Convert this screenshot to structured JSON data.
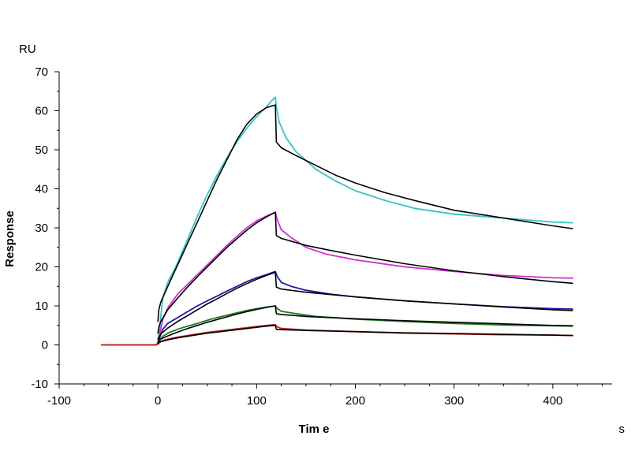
{
  "chart_data": {
    "type": "line",
    "title": "",
    "xlabel": "Tim e",
    "ylabel": "Response",
    "x_unit": "s",
    "y_unit": "RU",
    "xlim": [
      -100,
      460
    ],
    "ylim": [
      -10,
      70
    ],
    "x_ticks": [
      -100,
      0,
      100,
      200,
      300,
      400
    ],
    "y_ticks": [
      -10,
      0,
      10,
      20,
      30,
      40,
      50,
      60,
      70
    ],
    "grid": false,
    "legend": "none",
    "series": [
      {
        "color": "#33c4c8",
        "kind": "data",
        "points": [
          [
            -57,
            0
          ],
          [
            -20,
            0
          ],
          [
            -2,
            0
          ],
          [
            0,
            0.5
          ],
          [
            2,
            5
          ],
          [
            5,
            12
          ],
          [
            10,
            16
          ],
          [
            20,
            21
          ],
          [
            30,
            27
          ],
          [
            40,
            33
          ],
          [
            50,
            38.5
          ],
          [
            60,
            43.5
          ],
          [
            70,
            48
          ],
          [
            80,
            52
          ],
          [
            90,
            55.5
          ],
          [
            100,
            58.5
          ],
          [
            110,
            61
          ],
          [
            115,
            62.5
          ],
          [
            119,
            63.5
          ],
          [
            120,
            61
          ],
          [
            123,
            57
          ],
          [
            130,
            53
          ],
          [
            140,
            49.5
          ],
          [
            160,
            45
          ],
          [
            180,
            42
          ],
          [
            200,
            39.5
          ],
          [
            230,
            37
          ],
          [
            260,
            35
          ],
          [
            300,
            33.5
          ],
          [
            350,
            32.5
          ],
          [
            400,
            31.5
          ],
          [
            420,
            31.3
          ]
        ]
      },
      {
        "color": "#d42bd4",
        "kind": "data",
        "points": [
          [
            -57,
            0
          ],
          [
            -2,
            0
          ],
          [
            0,
            0.5
          ],
          [
            2,
            3
          ],
          [
            5,
            6.5
          ],
          [
            10,
            9.5
          ],
          [
            20,
            13
          ],
          [
            30,
            15.5
          ],
          [
            40,
            18
          ],
          [
            50,
            20.5
          ],
          [
            60,
            23
          ],
          [
            70,
            25.5
          ],
          [
            80,
            27.8
          ],
          [
            90,
            30
          ],
          [
            100,
            31.8
          ],
          [
            110,
            33
          ],
          [
            119,
            34
          ],
          [
            121,
            32
          ],
          [
            125,
            29.5
          ],
          [
            135,
            27.5
          ],
          [
            150,
            25
          ],
          [
            170,
            23.3
          ],
          [
            200,
            21.8
          ],
          [
            250,
            20
          ],
          [
            300,
            18.8
          ],
          [
            350,
            17.8
          ],
          [
            400,
            17.2
          ],
          [
            420,
            17.1
          ]
        ]
      },
      {
        "color": "#1a1aa8",
        "kind": "data",
        "points": [
          [
            -57,
            0
          ],
          [
            -2,
            0
          ],
          [
            0,
            0.3
          ],
          [
            2,
            2
          ],
          [
            5,
            4
          ],
          [
            10,
            5.5
          ],
          [
            20,
            7
          ],
          [
            30,
            8.5
          ],
          [
            40,
            10
          ],
          [
            50,
            11.3
          ],
          [
            60,
            12.5
          ],
          [
            70,
            13.8
          ],
          [
            80,
            15
          ],
          [
            90,
            16.2
          ],
          [
            100,
            17.2
          ],
          [
            110,
            18
          ],
          [
            119,
            18.8
          ],
          [
            121,
            17.5
          ],
          [
            125,
            16
          ],
          [
            135,
            15
          ],
          [
            150,
            14
          ],
          [
            175,
            13
          ],
          [
            200,
            12.3
          ],
          [
            250,
            11.3
          ],
          [
            300,
            10.5
          ],
          [
            350,
            9.8
          ],
          [
            400,
            9.3
          ],
          [
            420,
            9.2
          ]
        ]
      },
      {
        "color": "#1e7a1e",
        "kind": "data",
        "points": [
          [
            -57,
            0
          ],
          [
            -2,
            0
          ],
          [
            0,
            0.3
          ],
          [
            2,
            1.2
          ],
          [
            5,
            2.2
          ],
          [
            10,
            3
          ],
          [
            20,
            4
          ],
          [
            30,
            4.8
          ],
          [
            40,
            5.5
          ],
          [
            50,
            6.3
          ],
          [
            60,
            7
          ],
          [
            70,
            7.6
          ],
          [
            80,
            8.2
          ],
          [
            90,
            8.8
          ],
          [
            100,
            9.3
          ],
          [
            110,
            9.7
          ],
          [
            119,
            10
          ],
          [
            121,
            9.3
          ],
          [
            125,
            8.6
          ],
          [
            140,
            8
          ],
          [
            160,
            7.3
          ],
          [
            200,
            6.6
          ],
          [
            250,
            6
          ],
          [
            300,
            5.5
          ],
          [
            350,
            5.1
          ],
          [
            400,
            4.9
          ],
          [
            420,
            4.8
          ]
        ]
      },
      {
        "color": "#c0281e",
        "kind": "data",
        "points": [
          [
            -57,
            0
          ],
          [
            -2,
            0
          ],
          [
            0,
            0.2
          ],
          [
            2,
            0.7
          ],
          [
            5,
            1.1
          ],
          [
            10,
            1.5
          ],
          [
            20,
            2
          ],
          [
            30,
            2.4
          ],
          [
            40,
            2.8
          ],
          [
            50,
            3.2
          ],
          [
            60,
            3.5
          ],
          [
            70,
            3.8
          ],
          [
            80,
            4.1
          ],
          [
            90,
            4.4
          ],
          [
            100,
            4.7
          ],
          [
            110,
            5
          ],
          [
            119,
            5.2
          ],
          [
            121,
            4.6
          ],
          [
            125,
            4.2
          ],
          [
            150,
            3.8
          ],
          [
            200,
            3.4
          ],
          [
            250,
            3
          ],
          [
            300,
            2.8
          ],
          [
            350,
            2.6
          ],
          [
            400,
            2.5
          ],
          [
            420,
            2.4
          ]
        ]
      },
      {
        "color": "#000000",
        "kind": "fit",
        "points": [
          [
            0,
            6
          ],
          [
            1,
            9
          ],
          [
            3,
            11
          ],
          [
            10,
            15
          ],
          [
            20,
            20.5
          ],
          [
            30,
            26
          ],
          [
            40,
            31.5
          ],
          [
            50,
            37
          ],
          [
            60,
            42.5
          ],
          [
            70,
            47.5
          ],
          [
            80,
            52.5
          ],
          [
            90,
            56.5
          ],
          [
            100,
            59.2
          ],
          [
            110,
            60.8
          ],
          [
            119,
            61.5
          ],
          [
            120,
            52
          ],
          [
            125,
            50.5
          ],
          [
            140,
            48.5
          ],
          [
            160,
            46
          ],
          [
            180,
            43.5
          ],
          [
            200,
            41.5
          ],
          [
            230,
            39
          ],
          [
            260,
            37
          ],
          [
            300,
            34.5
          ],
          [
            350,
            32.5
          ],
          [
            400,
            30.5
          ],
          [
            420,
            29.8
          ]
        ]
      },
      {
        "color": "#000000",
        "kind": "fit",
        "points": [
          [
            0,
            3
          ],
          [
            1,
            4.5
          ],
          [
            3,
            6
          ],
          [
            10,
            9
          ],
          [
            20,
            12
          ],
          [
            30,
            14.8
          ],
          [
            40,
            17.5
          ],
          [
            50,
            20
          ],
          [
            60,
            22.5
          ],
          [
            70,
            25
          ],
          [
            80,
            27.2
          ],
          [
            90,
            29.4
          ],
          [
            100,
            31.3
          ],
          [
            110,
            32.8
          ],
          [
            119,
            34
          ],
          [
            120,
            28
          ],
          [
            125,
            27.3
          ],
          [
            150,
            25.5
          ],
          [
            175,
            24.2
          ],
          [
            200,
            23
          ],
          [
            250,
            20.8
          ],
          [
            300,
            19
          ],
          [
            350,
            17.5
          ],
          [
            400,
            16.2
          ],
          [
            420,
            15.8
          ]
        ]
      },
      {
        "color": "#000000",
        "kind": "fit",
        "points": [
          [
            0,
            1.5
          ],
          [
            3,
            2.8
          ],
          [
            10,
            4.3
          ],
          [
            20,
            6
          ],
          [
            30,
            7.5
          ],
          [
            40,
            9
          ],
          [
            50,
            10.5
          ],
          [
            60,
            11.8
          ],
          [
            70,
            13.2
          ],
          [
            80,
            14.5
          ],
          [
            90,
            15.7
          ],
          [
            100,
            16.8
          ],
          [
            110,
            17.8
          ],
          [
            119,
            18.6
          ],
          [
            120,
            14.8
          ],
          [
            125,
            14.3
          ],
          [
            150,
            13.5
          ],
          [
            200,
            12.3
          ],
          [
            250,
            11.3
          ],
          [
            300,
            10.5
          ],
          [
            350,
            9.7
          ],
          [
            400,
            9
          ],
          [
            420,
            8.8
          ]
        ]
      },
      {
        "color": "#000000",
        "kind": "fit",
        "points": [
          [
            0,
            0.8
          ],
          [
            3,
            1.5
          ],
          [
            10,
            2.3
          ],
          [
            20,
            3.3
          ],
          [
            30,
            4.2
          ],
          [
            40,
            5
          ],
          [
            50,
            5.8
          ],
          [
            60,
            6.5
          ],
          [
            70,
            7.2
          ],
          [
            80,
            7.9
          ],
          [
            90,
            8.5
          ],
          [
            100,
            9.1
          ],
          [
            110,
            9.6
          ],
          [
            119,
            10
          ],
          [
            120,
            8
          ],
          [
            125,
            7.8
          ],
          [
            150,
            7.3
          ],
          [
            200,
            6.7
          ],
          [
            250,
            6.2
          ],
          [
            300,
            5.8
          ],
          [
            350,
            5.4
          ],
          [
            400,
            5
          ],
          [
            420,
            4.9
          ]
        ]
      },
      {
        "color": "#000000",
        "kind": "fit",
        "points": [
          [
            0,
            0.4
          ],
          [
            3,
            0.8
          ],
          [
            10,
            1.3
          ],
          [
            20,
            1.8
          ],
          [
            30,
            2.2
          ],
          [
            40,
            2.6
          ],
          [
            50,
            3
          ],
          [
            60,
            3.3
          ],
          [
            70,
            3.6
          ],
          [
            80,
            3.9
          ],
          [
            90,
            4.2
          ],
          [
            100,
            4.5
          ],
          [
            110,
            4.8
          ],
          [
            119,
            5
          ],
          [
            120,
            4
          ],
          [
            125,
            3.9
          ],
          [
            150,
            3.7
          ],
          [
            200,
            3.4
          ],
          [
            250,
            3.1
          ],
          [
            300,
            2.9
          ],
          [
            350,
            2.7
          ],
          [
            400,
            2.5
          ],
          [
            420,
            2.4
          ]
        ]
      }
    ]
  }
}
